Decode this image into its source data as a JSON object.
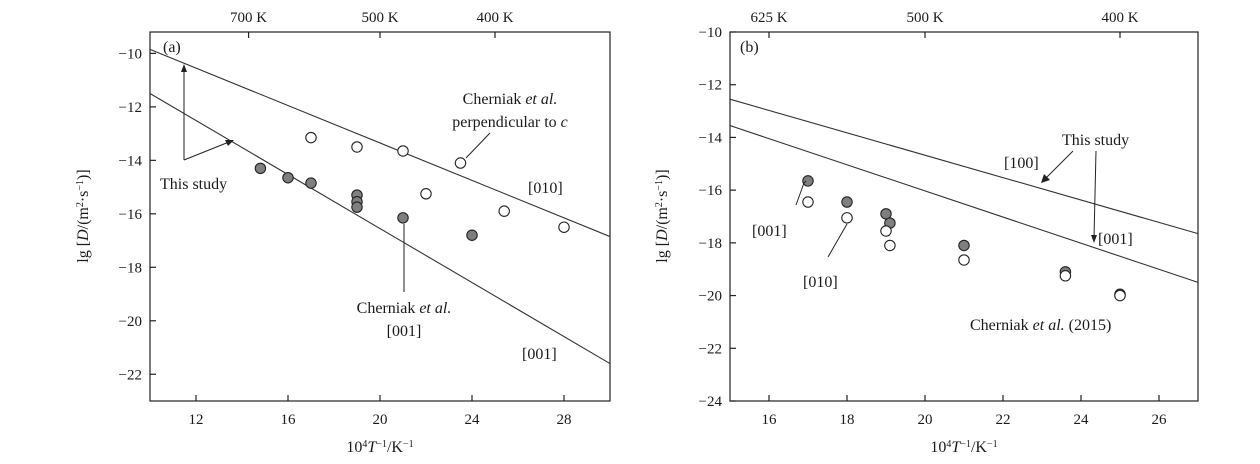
{
  "chart_data": [
    {
      "type": "scatter",
      "panel_label": "(a)",
      "xlabel": "10⁴T⁻¹/K⁻¹",
      "ylabel": "lg [D/(m²·s⁻¹)]",
      "xlim": [
        10,
        30
      ],
      "ylim": [
        -23,
        -9.2
      ],
      "x_ticks": [
        12,
        16,
        20,
        24,
        28
      ],
      "y_ticks": [
        -10,
        -12,
        -14,
        -16,
        -18,
        -20,
        -22
      ],
      "x_tick_labels": [
        "12",
        "16",
        "20",
        "24",
        "28"
      ],
      "y_tick_labels": [
        "−10",
        "−12",
        "−14",
        "−16",
        "−18",
        "−20",
        "−22"
      ],
      "top_axis": {
        "ticks": [
          14.2857,
          20,
          25
        ],
        "labels": [
          "700 K",
          "500 K",
          "400 K"
        ]
      },
      "grid": false,
      "series": [
        {
          "marker": "filled",
          "points": [
            [
              14.8,
              -14.3
            ],
            [
              16.0,
              -14.65
            ],
            [
              17.0,
              -14.85
            ],
            [
              19.0,
              -15.3
            ],
            [
              19.0,
              -15.55
            ],
            [
              19.0,
              -15.75
            ],
            [
              21.0,
              -16.15
            ],
            [
              24.0,
              -16.8
            ]
          ]
        },
        {
          "marker": "open",
          "points": [
            [
              17.0,
              -13.15
            ],
            [
              19.0,
              -13.5
            ],
            [
              21.0,
              -13.65
            ],
            [
              22.0,
              -15.25
            ],
            [
              23.5,
              -14.1
            ],
            [
              25.4,
              -15.9
            ],
            [
              28.0,
              -16.5
            ]
          ]
        }
      ],
      "lines": [
        {
          "label": "[010]",
          "x": [
            10,
            30
          ],
          "y": [
            -9.85,
            -16.85
          ]
        },
        {
          "label": "[001]",
          "x": [
            10,
            30
          ],
          "y": [
            -11.5,
            -21.6
          ]
        }
      ],
      "annotations": {
        "this_study": "This study",
        "cherniak_perp_l1": "Cherniak et al.",
        "cherniak_perp_l2": "perpendicular to c",
        "line_010": "[010]",
        "cherniak_001_l1": "Cherniak et al.",
        "cherniak_001_l2": "[001]",
        "line_001": "[001]"
      }
    },
    {
      "type": "scatter",
      "panel_label": "(b)",
      "xlabel": "10⁴T⁻¹/K⁻¹",
      "ylabel": "lg [D/(m²·s⁻¹)]",
      "xlim": [
        15,
        27
      ],
      "ylim": [
        -24,
        -10
      ],
      "x_ticks": [
        16,
        18,
        20,
        22,
        24,
        26
      ],
      "y_ticks": [
        -10,
        -12,
        -14,
        -16,
        -18,
        -20,
        -22,
        -24
      ],
      "x_tick_labels": [
        "16",
        "18",
        "20",
        "22",
        "24",
        "26"
      ],
      "y_tick_labels": [
        "−10",
        "−12",
        "−14",
        "−16",
        "−18",
        "−20",
        "−22",
        "−24"
      ],
      "top_axis": {
        "ticks": [
          16,
          20,
          25
        ],
        "labels": [
          "625 K",
          "500 K",
          "400 K"
        ]
      },
      "grid": false,
      "series": [
        {
          "marker": "filled",
          "points": [
            [
              17.0,
              -15.65
            ],
            [
              18.0,
              -16.45
            ],
            [
              19.0,
              -16.9
            ],
            [
              19.1,
              -17.25
            ],
            [
              21.0,
              -18.1
            ],
            [
              23.6,
              -19.1
            ],
            [
              25.0,
              -19.95
            ]
          ]
        },
        {
          "marker": "open",
          "points": [
            [
              17.0,
              -16.45
            ],
            [
              18.0,
              -17.05
            ],
            [
              19.0,
              -17.55
            ],
            [
              19.1,
              -18.1
            ],
            [
              21.0,
              -18.65
            ],
            [
              23.6,
              -19.25
            ],
            [
              25.0,
              -20.0
            ]
          ]
        }
      ],
      "lines": [
        {
          "label": "[100]",
          "x": [
            15,
            27
          ],
          "y": [
            -12.55,
            -17.65
          ]
        },
        {
          "label": "[001]",
          "x": [
            15,
            27
          ],
          "y": [
            -13.55,
            -19.5
          ]
        }
      ],
      "annotations": {
        "this_study": "This study",
        "line_100": "[100]",
        "line_001": "[001]",
        "pt_001": "[001]",
        "pt_010": "[010]",
        "cherniak_2015": "Cherniak et al. (2015)"
      }
    }
  ]
}
